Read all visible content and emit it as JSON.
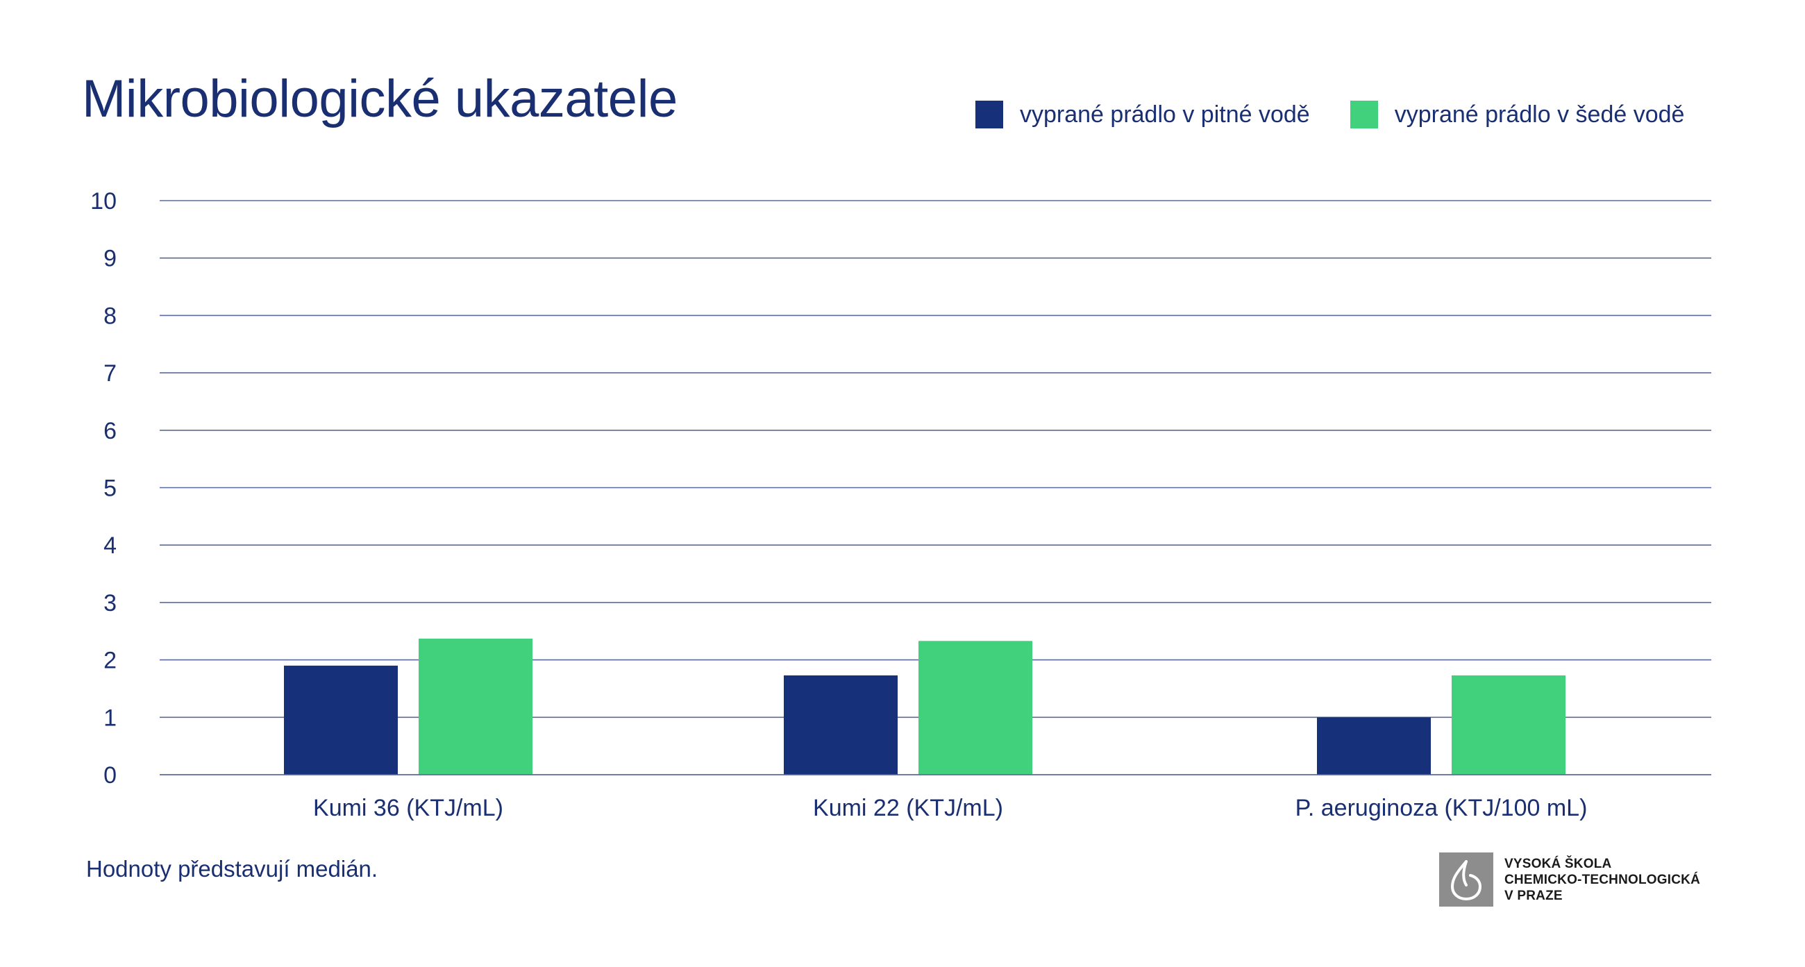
{
  "title": "Mikrobiologické ukazatele",
  "footnote": "Hodnoty představují medián.",
  "logo": {
    "lines": [
      "VYSOKÁ ŠKOLA",
      "CHEMICKO-TECHNOLOGICKÁ",
      "V PRAZE"
    ],
    "mark_icon": "vscht-drop-logo-icon",
    "mark_color": "#8d8d8d"
  },
  "legend": [
    {
      "label": "vyprané prádlo v pitné vodě",
      "color": "#17307a"
    },
    {
      "label": "vyprané prádlo v šedé vodě",
      "color": "#41d07b"
    }
  ],
  "chart_data": {
    "type": "bar",
    "categories": [
      "Kumi 36 (KTJ/mL)",
      "Kumi 22 (KTJ/mL)",
      "P. aeruginoza (KTJ/100 mL)"
    ],
    "series": [
      {
        "name": "vyprané prádlo v pitné vodě",
        "color": "#17307a",
        "values": [
          1.9,
          1.73,
          1.0
        ]
      },
      {
        "name": "vyprané prádlo v šedé vodě",
        "color": "#41d07b",
        "values": [
          2.37,
          2.33,
          1.73
        ]
      }
    ],
    "yticks": [
      "0",
      "1",
      "2",
      "3",
      "4",
      "5",
      "6",
      "7",
      "8",
      "9",
      "10"
    ],
    "ylim": [
      0,
      10
    ],
    "grid": true,
    "legend_position": "top-right"
  }
}
